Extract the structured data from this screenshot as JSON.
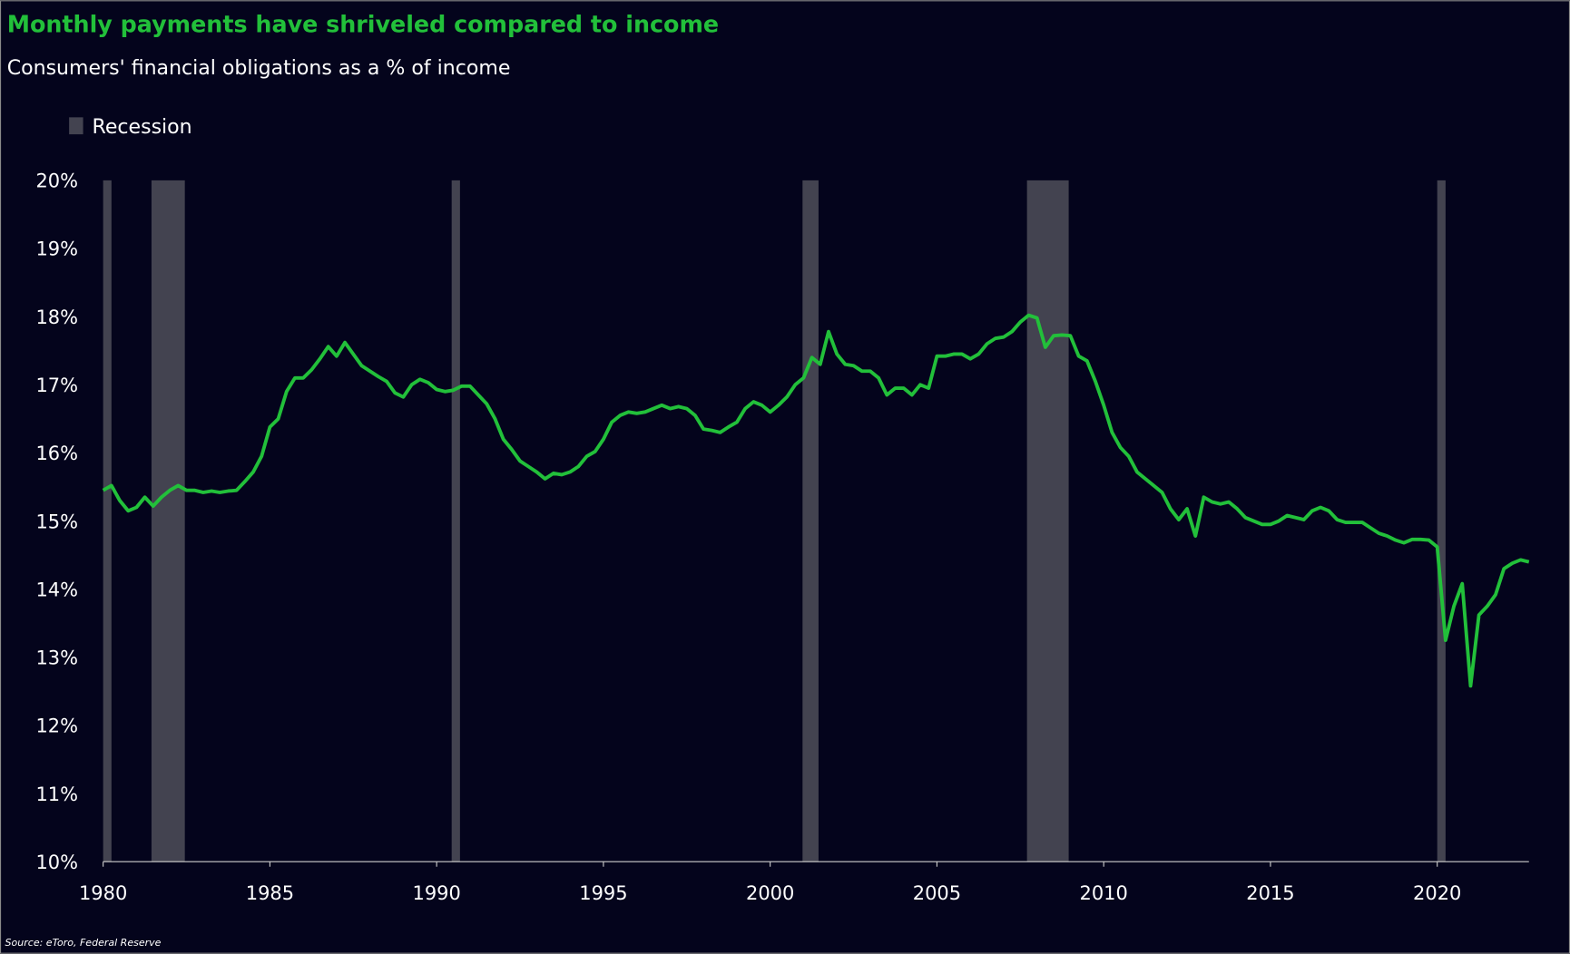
{
  "chart_data": {
    "type": "line",
    "title": "Monthly payments have shriveled compared to income",
    "subtitle": "Consumers' financial obligations as a % of income",
    "source": "Source: eToro, Federal Reserve",
    "legend_label": "Recession",
    "recession_color": "#434350",
    "recessions": [
      [
        1980.0,
        1980.25
      ],
      [
        1981.45,
        1982.45
      ],
      [
        1990.45,
        1990.7
      ],
      [
        2000.97,
        2001.45
      ],
      [
        2007.7,
        2008.95
      ],
      [
        2020.0,
        2020.25
      ]
    ],
    "xlim": [
      1980,
      2022.75
    ],
    "xticks": [
      1980,
      1985,
      1990,
      1995,
      2000,
      2005,
      2010,
      2015,
      2020
    ],
    "ylim": [
      10,
      20
    ],
    "yticks": [
      {
        "value": 10,
        "label": "10%"
      },
      {
        "value": 11,
        "label": "11%"
      },
      {
        "value": 12,
        "label": "12%"
      },
      {
        "value": 13,
        "label": "13%"
      },
      {
        "value": 14,
        "label": "14%"
      },
      {
        "value": 15,
        "label": "15%"
      },
      {
        "value": 16,
        "label": "16%"
      },
      {
        "value": 17,
        "label": "17%"
      },
      {
        "value": 18,
        "label": "18%"
      },
      {
        "value": 19,
        "label": "19%"
      },
      {
        "value": 20,
        "label": "20%"
      }
    ],
    "series": [
      {
        "color": "#22c03a",
        "x": [
          1980,
          1980.25,
          1980.5,
          1980.75,
          1981,
          1981.25,
          1981.5,
          1981.75,
          1982,
          1982.25,
          1982.5,
          1982.75,
          1983,
          1983.25,
          1983.5,
          1983.75,
          1984,
          1984.25,
          1984.5,
          1984.75,
          1985,
          1985.25,
          1985.5,
          1985.75,
          1986,
          1986.25,
          1986.5,
          1986.75,
          1987,
          1987.25,
          1987.5,
          1987.75,
          1988,
          1988.25,
          1988.5,
          1988.75,
          1989,
          1989.25,
          1989.5,
          1989.75,
          1990,
          1990.25,
          1990.5,
          1990.75,
          1991,
          1991.25,
          1991.5,
          1991.75,
          1992,
          1992.25,
          1992.5,
          1992.75,
          1993,
          1993.25,
          1993.5,
          1993.75,
          1994,
          1994.25,
          1994.5,
          1994.75,
          1995,
          1995.25,
          1995.5,
          1995.75,
          1996,
          1996.25,
          1996.5,
          1996.75,
          1997,
          1997.25,
          1997.5,
          1997.75,
          1998,
          1998.25,
          1998.5,
          1998.75,
          1999,
          1999.25,
          1999.5,
          1999.75,
          2000,
          2000.25,
          2000.5,
          2000.75,
          2001,
          2001.25,
          2001.5,
          2001.75,
          2002,
          2002.25,
          2002.5,
          2002.75,
          2003,
          2003.25,
          2003.5,
          2003.75,
          2004,
          2004.25,
          2004.5,
          2004.75,
          2005,
          2005.25,
          2005.5,
          2005.75,
          2006,
          2006.25,
          2006.5,
          2006.75,
          2007,
          2007.25,
          2007.5,
          2007.75,
          2008,
          2008.25,
          2008.5,
          2008.75,
          2009,
          2009.25,
          2009.5,
          2009.75,
          2010,
          2010.25,
          2010.5,
          2010.75,
          2011,
          2011.25,
          2011.5,
          2011.75,
          2012,
          2012.25,
          2012.5,
          2012.75,
          2013,
          2013.25,
          2013.5,
          2013.75,
          2014,
          2014.25,
          2014.5,
          2014.75,
          2015,
          2015.25,
          2015.5,
          2015.75,
          2016,
          2016.25,
          2016.5,
          2016.75,
          2017,
          2017.25,
          2017.5,
          2017.75,
          2018,
          2018.25,
          2018.5,
          2018.75,
          2019,
          2019.25,
          2019.5,
          2019.75,
          2020,
          2020.25,
          2020.5,
          2020.75,
          2021,
          2021.25,
          2021.5,
          2021.75,
          2022,
          2022.25,
          2022.5,
          2022.75
        ],
        "values": [
          15.45,
          15.52,
          15.3,
          15.15,
          15.2,
          15.35,
          15.22,
          15.35,
          15.45,
          15.52,
          15.45,
          15.45,
          15.42,
          15.44,
          15.42,
          15.44,
          15.45,
          15.58,
          15.72,
          15.95,
          16.38,
          16.5,
          16.9,
          17.1,
          17.1,
          17.22,
          17.38,
          17.56,
          17.42,
          17.62,
          17.45,
          17.28,
          17.2,
          17.12,
          17.05,
          16.88,
          16.82,
          17.0,
          17.08,
          17.03,
          16.93,
          16.9,
          16.92,
          16.98,
          16.98,
          16.85,
          16.72,
          16.5,
          16.2,
          16.05,
          15.88,
          15.8,
          15.72,
          15.62,
          15.7,
          15.68,
          15.72,
          15.8,
          15.95,
          16.02,
          16.2,
          16.45,
          16.55,
          16.6,
          16.58,
          16.6,
          16.65,
          16.7,
          16.65,
          16.68,
          16.65,
          16.55,
          16.35,
          16.33,
          16.3,
          16.38,
          16.45,
          16.65,
          16.75,
          16.7,
          16.6,
          16.7,
          16.82,
          17.0,
          17.1,
          17.4,
          17.3,
          17.78,
          17.45,
          17.3,
          17.28,
          17.2,
          17.2,
          17.1,
          16.85,
          16.95,
          16.95,
          16.85,
          17.0,
          16.95,
          17.42,
          17.42,
          17.45,
          17.45,
          17.38,
          17.45,
          17.6,
          17.68,
          17.7,
          17.78,
          17.92,
          18.02,
          17.98,
          17.55,
          17.72,
          17.73,
          17.72,
          17.42,
          17.35,
          17.05,
          16.7,
          16.3,
          16.08,
          15.95,
          15.72,
          15.62,
          15.52,
          15.42,
          15.18,
          15.02,
          15.18,
          14.78,
          15.35,
          15.28,
          15.25,
          15.28,
          15.18,
          15.05,
          15.0,
          14.95,
          14.95,
          15.0,
          15.08,
          15.05,
          15.02,
          15.15,
          15.2,
          15.15,
          15.02,
          14.98,
          14.98,
          14.98,
          14.9,
          14.82,
          14.78,
          14.72,
          14.68,
          14.73,
          14.73,
          14.72,
          14.62,
          13.25,
          13.75,
          14.08,
          12.58,
          13.62,
          13.75,
          13.92,
          14.3,
          14.38,
          14.43,
          14.4
        ]
      }
    ]
  }
}
